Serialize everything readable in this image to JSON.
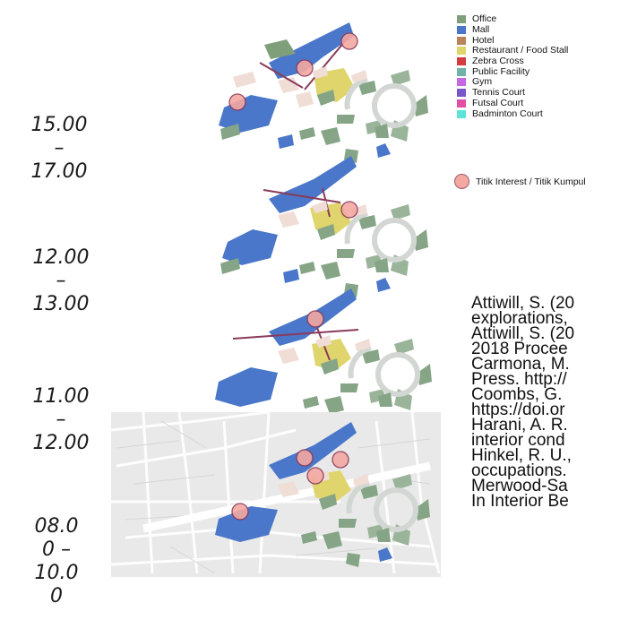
{
  "time_labels": [
    {
      "lines": [
        "15.00",
        "–",
        "17.00"
      ]
    },
    {
      "lines": [
        "12.00",
        "–",
        "13.00"
      ]
    },
    {
      "lines": [
        "11.00",
        "–",
        "12.00"
      ]
    },
    {
      "lines": [
        "08.0",
        "0 –",
        "10.0",
        "0"
      ]
    }
  ],
  "legend": {
    "items": [
      {
        "label": "Office",
        "color": "#7f9f7a"
      },
      {
        "label": "Mall",
        "color": "#4a77c9"
      },
      {
        "label": "Hotel",
        "color": "#b9835c"
      },
      {
        "label": "Restaurant / Food Stall",
        "color": "#e0d56d"
      },
      {
        "label": "Zebra Cross",
        "color": "#d43b3b"
      },
      {
        "label": "Public Facility",
        "color": "#6fb3a8"
      },
      {
        "label": "Gym",
        "color": "#c567e0"
      },
      {
        "label": "Tennis Court",
        "color": "#7b56c9"
      },
      {
        "label": "Futsal Court",
        "color": "#e04ea8"
      },
      {
        "label": "Badminton Court",
        "color": "#5de3d8"
      }
    ],
    "interest_label": "Titik Interest / Titik Kumpul",
    "interest_color": "#f4a8a2"
  },
  "references": [
    "Attiwill, S. (20",
    "explorations,",
    "Attiwill, S. (20",
    "2018 Procee",
    "Carmona, M.",
    "Press. http://",
    "Coombs, G.",
    "https://doi.or",
    "Harani, A. R.",
    "interior cond",
    "Hinkel, R. U.,",
    "occupations.",
    "Merwood-Sa",
    "In Interior Be"
  ]
}
